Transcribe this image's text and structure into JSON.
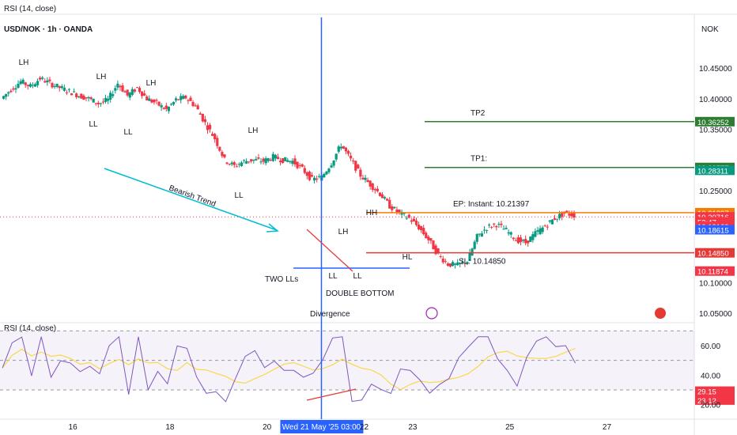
{
  "header": {
    "top_indicator": "RSI (14, close)",
    "symbol": "USD/NOK · 1h · OANDA",
    "currency": "NOK",
    "rsi_title": "RSI (14, close)"
  },
  "chart_data": [
    {
      "type": "candlestick",
      "title": "USD/NOK · 1h · OANDA",
      "ylabel": "NOK",
      "ylim": [
        10.02,
        10.48
      ],
      "y_ticks": [
        10.05,
        10.1,
        10.15,
        10.2,
        10.25,
        10.3,
        10.35,
        10.4,
        10.45
      ],
      "y_tick_labels": [
        "10.05000",
        "10.10000",
        "",
        "",
        "10.25000",
        "",
        "10.35000",
        "10.40000",
        "10.45000"
      ],
      "x_ticks": [
        {
          "day": 16,
          "label": "16"
        },
        {
          "day": 18,
          "label": "18"
        },
        {
          "day": 20,
          "label": "20"
        },
        {
          "day": 22,
          "label": "22"
        },
        {
          "day": 23,
          "label": "23"
        },
        {
          "day": 25,
          "label": "25"
        },
        {
          "day": 27,
          "label": "27"
        }
      ],
      "x_range_days": [
        14.5,
        28.8
      ],
      "highlighted_x_label": "Wed 21 May '25   03:00",
      "highlighted_x_day": 21.12,
      "price_path": [
        [
          14.55,
          10.4
        ],
        [
          14.75,
          10.415
        ],
        [
          14.95,
          10.428
        ],
        [
          15.15,
          10.42
        ],
        [
          15.35,
          10.433
        ],
        [
          15.55,
          10.425
        ],
        [
          15.75,
          10.418
        ],
        [
          15.95,
          10.412
        ],
        [
          16.15,
          10.405
        ],
        [
          16.35,
          10.4
        ],
        [
          16.55,
          10.392
        ],
        [
          16.75,
          10.398
        ],
        [
          16.95,
          10.425
        ],
        [
          17.15,
          10.405
        ],
        [
          17.35,
          10.418
        ],
        [
          17.55,
          10.4
        ],
        [
          17.75,
          10.392
        ],
        [
          17.95,
          10.382
        ],
        [
          18.15,
          10.398
        ],
        [
          18.35,
          10.402
        ],
        [
          18.55,
          10.388
        ],
        [
          18.75,
          10.36
        ],
        [
          18.95,
          10.335
        ],
        [
          19.15,
          10.3
        ],
        [
          19.35,
          10.29
        ],
        [
          19.55,
          10.298
        ],
        [
          19.75,
          10.3
        ],
        [
          19.95,
          10.298
        ],
        [
          20.15,
          10.305
        ],
        [
          20.35,
          10.3
        ],
        [
          20.55,
          10.298
        ],
        [
          20.75,
          10.285
        ],
        [
          20.95,
          10.268
        ],
        [
          21.15,
          10.272
        ],
        [
          21.35,
          10.295
        ],
        [
          21.55,
          10.325
        ],
        [
          21.75,
          10.3
        ],
        [
          21.95,
          10.275
        ],
        [
          22.15,
          10.26
        ],
        [
          22.35,
          10.245
        ],
        [
          22.55,
          10.225
        ],
        [
          22.75,
          10.213
        ],
        [
          22.95,
          10.205
        ],
        [
          23.15,
          10.19
        ],
        [
          23.35,
          10.17
        ],
        [
          23.55,
          10.145
        ],
        [
          23.75,
          10.13
        ],
        [
          23.95,
          10.128
        ],
        [
          24.15,
          10.135
        ],
        [
          24.35,
          10.175
        ],
        [
          24.55,
          10.19
        ],
        [
          24.75,
          10.195
        ],
        [
          24.95,
          10.185
        ],
        [
          25.15,
          10.17
        ],
        [
          25.35,
          10.165
        ],
        [
          25.55,
          10.18
        ],
        [
          25.75,
          10.192
        ],
        [
          25.95,
          10.205
        ],
        [
          26.15,
          10.213
        ],
        [
          26.35,
          10.21
        ]
      ],
      "series": [
        {
          "name": "TP2",
          "value": 10.36252,
          "badge": "10.36252",
          "color": "#2e7d32"
        },
        {
          "name": "TP1:",
          "value": 10.28777,
          "badge": "10.28777",
          "color": "#2e7d32"
        },
        {
          "name": "EP: Instant: 10.21397",
          "value": 10.21397,
          "badge": "10.21397",
          "color": "#f57c00"
        },
        {
          "name": "SL: 10.14850",
          "value": 10.1485,
          "badge": "10.14850",
          "color": "#e53935"
        }
      ],
      "price_badges": [
        {
          "text": "10.28311",
          "value": 10.28311,
          "color": "#089981"
        },
        {
          "text": "10.20716",
          "value": 10.20716,
          "color": "#f23645"
        },
        {
          "text": "52:47",
          "value": 10.199,
          "color": "#f23645"
        },
        {
          "text": "10.19169",
          "value": 10.19169,
          "color": "#f23645"
        },
        {
          "text": "10.18615",
          "value": 10.18615,
          "color": "#2962ff"
        },
        {
          "text": "10.11874",
          "value": 10.11874,
          "color": "#f23645"
        }
      ],
      "annotations": {
        "swing_labels": [
          "LH",
          "LH",
          "LH",
          "LL",
          "LL",
          "LH",
          "LL",
          "LH",
          "HH",
          "HL",
          "LL",
          "LL"
        ],
        "bearish_trend": "Bearish Trend",
        "two_lls": "TWO LLs",
        "double_bottom": "DOUBLE BOTTOM",
        "divergence": "Divergence"
      }
    },
    {
      "type": "line",
      "title": "RSI (14, close)",
      "ylim": [
        20,
        75
      ],
      "y_ticks": [
        20,
        40,
        60
      ],
      "y_tick_labels": [
        "20.00",
        "40.00",
        "60.00"
      ],
      "levels": [
        30,
        50,
        70
      ],
      "series": [
        {
          "name": "RSI",
          "color": "#7e57c2"
        },
        {
          "name": "MA",
          "color": "#f9d84a"
        }
      ],
      "badges": [
        {
          "text": "29.15",
          "value": 29.15,
          "color": "#f23645"
        },
        {
          "text": "23.12",
          "value": 23.12,
          "color": "#f23645"
        }
      ]
    }
  ]
}
